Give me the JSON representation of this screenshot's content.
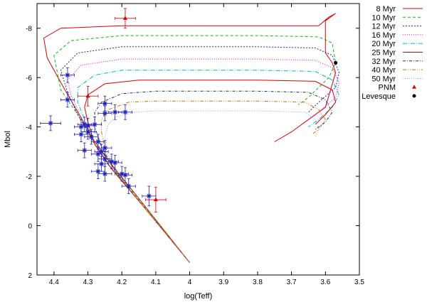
{
  "chart_data": {
    "type": "line",
    "title": "",
    "xlabel": "log(Teff)",
    "ylabel": "Mbol",
    "xlim": [
      4.45,
      3.5
    ],
    "ylim": [
      2,
      -9
    ],
    "xticks": [
      "4.4",
      "4.3",
      "4.2",
      "4.1",
      "4",
      "3.9",
      "3.8",
      "3.7",
      "3.6",
      "3.5"
    ],
    "yticks": [
      "-8",
      "-6",
      "-4",
      "-2",
      "0",
      "2"
    ],
    "legend_position": "right",
    "series": [
      {
        "name": "8 Myr",
        "color": "#e00000",
        "dash": "",
        "points": [
          [
            4.0,
            1.5
          ],
          [
            4.15,
            -1.1
          ],
          [
            4.22,
            -2.3
          ],
          [
            4.28,
            -3.4
          ],
          [
            4.33,
            -4.6
          ],
          [
            4.38,
            -5.8
          ],
          [
            4.42,
            -6.8
          ],
          [
            4.43,
            -7.6
          ],
          [
            4.38,
            -8.0
          ],
          [
            4.2,
            -8.1
          ],
          [
            3.8,
            -8.1
          ],
          [
            3.7,
            -8.1
          ],
          [
            3.62,
            -8.1
          ],
          [
            3.59,
            -8.45
          ],
          [
            3.57,
            -8.6
          ],
          [
            3.6,
            -8.3
          ],
          [
            3.6,
            -7.0
          ],
          [
            3.58,
            -6.6
          ],
          [
            3.57,
            -6.2
          ],
          [
            3.6,
            -4.8
          ],
          [
            3.65,
            -4.3
          ],
          [
            3.7,
            -3.8
          ],
          [
            3.75,
            -3.4
          ]
        ]
      },
      {
        "name": "10 Myr",
        "color": "#00c000",
        "dash": "4,3",
        "points": [
          [
            4.0,
            1.5
          ],
          [
            4.15,
            -1.05
          ],
          [
            4.22,
            -2.25
          ],
          [
            4.28,
            -3.4
          ],
          [
            4.33,
            -4.5
          ],
          [
            4.38,
            -5.5
          ],
          [
            4.4,
            -6.9
          ],
          [
            4.35,
            -7.5
          ],
          [
            4.2,
            -7.7
          ],
          [
            3.8,
            -7.7
          ],
          [
            3.62,
            -7.65
          ],
          [
            3.58,
            -7.4
          ],
          [
            3.57,
            -6.6
          ],
          [
            3.59,
            -6.0
          ],
          [
            3.62,
            -5.6
          ],
          [
            3.65,
            -5.2
          ],
          [
            3.68,
            -4.9
          ]
        ]
      },
      {
        "name": "12 Myr",
        "color": "#2020c0",
        "dash": "2,2",
        "points": [
          [
            4.0,
            1.5
          ],
          [
            4.15,
            -1.0
          ],
          [
            4.23,
            -2.3
          ],
          [
            4.28,
            -3.3
          ],
          [
            4.33,
            -4.5
          ],
          [
            4.36,
            -5.4
          ],
          [
            4.38,
            -6.3
          ],
          [
            4.33,
            -7.0
          ],
          [
            4.2,
            -7.25
          ],
          [
            3.8,
            -7.25
          ],
          [
            3.63,
            -7.2
          ],
          [
            3.58,
            -6.9
          ],
          [
            3.56,
            -6.2
          ],
          [
            3.57,
            -5.6
          ],
          [
            3.62,
            -5.0
          ],
          [
            3.65,
            -4.6
          ]
        ]
      },
      {
        "name": "16 Myr",
        "color": "#e000e0",
        "dash": "1,2",
        "points": [
          [
            4.0,
            1.5
          ],
          [
            4.15,
            -1.0
          ],
          [
            4.23,
            -2.3
          ],
          [
            4.28,
            -3.3
          ],
          [
            4.32,
            -4.4
          ],
          [
            4.35,
            -5.3
          ],
          [
            4.36,
            -5.9
          ],
          [
            4.32,
            -6.5
          ],
          [
            4.2,
            -6.75
          ],
          [
            3.8,
            -6.75
          ],
          [
            3.63,
            -6.7
          ],
          [
            3.58,
            -6.4
          ],
          [
            3.56,
            -5.8
          ],
          [
            3.57,
            -5.2
          ],
          [
            3.62,
            -4.6
          ],
          [
            3.65,
            -4.3
          ]
        ]
      },
      {
        "name": "20 Myr",
        "color": "#00c0c0",
        "dash": "6,2,1,2",
        "points": [
          [
            4.0,
            1.5
          ],
          [
            4.15,
            -1.0
          ],
          [
            4.23,
            -2.3
          ],
          [
            4.28,
            -3.3
          ],
          [
            4.31,
            -4.3
          ],
          [
            4.33,
            -5.0
          ],
          [
            4.33,
            -5.6
          ],
          [
            4.28,
            -6.1
          ],
          [
            4.2,
            -6.3
          ],
          [
            3.8,
            -6.3
          ],
          [
            3.63,
            -6.25
          ],
          [
            3.58,
            -5.9
          ],
          [
            3.56,
            -5.3
          ],
          [
            3.58,
            -4.8
          ],
          [
            3.62,
            -4.3
          ],
          [
            3.65,
            -4.0
          ]
        ]
      },
      {
        "name": "25 Myr",
        "color": "#e00000",
        "dash": "",
        "points": [
          [
            4.0,
            1.5
          ],
          [
            4.15,
            -1.0
          ],
          [
            4.23,
            -2.3
          ],
          [
            4.28,
            -3.3
          ],
          [
            4.3,
            -4.2
          ],
          [
            4.31,
            -4.8
          ],
          [
            4.3,
            -5.3
          ],
          [
            4.25,
            -5.75
          ],
          [
            4.15,
            -5.9
          ],
          [
            3.8,
            -5.9
          ],
          [
            3.63,
            -5.85
          ],
          [
            3.58,
            -5.5
          ],
          [
            3.57,
            -5.0
          ],
          [
            3.6,
            -4.5
          ],
          [
            3.63,
            -4.1
          ]
        ]
      },
      {
        "name": "32 Myr",
        "color": "#203060",
        "dash": "4,2,1,2",
        "points": [
          [
            4.0,
            1.5
          ],
          [
            4.15,
            -1.0
          ],
          [
            4.22,
            -2.2
          ],
          [
            4.26,
            -3.2
          ],
          [
            4.28,
            -4.0
          ],
          [
            4.28,
            -4.6
          ],
          [
            4.26,
            -5.0
          ],
          [
            4.2,
            -5.35
          ],
          [
            4.1,
            -5.45
          ],
          [
            3.8,
            -5.45
          ],
          [
            3.65,
            -5.4
          ],
          [
            3.6,
            -5.1
          ],
          [
            3.58,
            -4.6
          ],
          [
            3.6,
            -4.2
          ],
          [
            3.63,
            -3.9
          ]
        ]
      },
      {
        "name": "40 Myr",
        "color": "#e07000",
        "dash": "5,2,1,2,1,2",
        "points": [
          [
            4.0,
            1.5
          ],
          [
            4.15,
            -1.0
          ],
          [
            4.22,
            -2.2
          ],
          [
            4.25,
            -3.1
          ],
          [
            4.26,
            -3.8
          ],
          [
            4.26,
            -4.3
          ],
          [
            4.24,
            -4.7
          ],
          [
            4.18,
            -5.0
          ],
          [
            4.1,
            -5.05
          ],
          [
            3.8,
            -5.05
          ],
          [
            3.66,
            -5.0
          ],
          [
            3.62,
            -4.7
          ],
          [
            3.6,
            -4.3
          ],
          [
            3.62,
            -3.9
          ],
          [
            3.64,
            -3.7
          ]
        ]
      },
      {
        "name": "50 Myr",
        "color": "#a0a0a0",
        "dash": "1,2",
        "points": [
          [
            4.0,
            1.5
          ],
          [
            4.15,
            -1.0
          ],
          [
            4.21,
            -2.1
          ],
          [
            4.24,
            -3.0
          ],
          [
            4.25,
            -3.6
          ],
          [
            4.24,
            -4.1
          ],
          [
            4.22,
            -4.4
          ],
          [
            4.16,
            -4.6
          ],
          [
            4.1,
            -4.65
          ],
          [
            3.8,
            -4.65
          ],
          [
            3.66,
            -4.6
          ],
          [
            3.63,
            -4.3
          ],
          [
            3.62,
            -3.9
          ],
          [
            3.63,
            -3.6
          ]
        ]
      }
    ],
    "observations": [
      {
        "name": "PNM",
        "marker": "triangle",
        "color": "#e00000",
        "points": [
          [
            4.19,
            -8.4,
            0.03,
            0.4
          ],
          [
            4.3,
            -5.25,
            0.03,
            0.4
          ],
          [
            4.1,
            -1.05,
            0.03,
            0.5
          ]
        ]
      },
      {
        "name": "Levesque",
        "marker": "circle",
        "color": "#000000",
        "points": [
          [
            3.57,
            -6.6,
            0,
            0
          ]
        ]
      },
      {
        "name": "Stars",
        "marker": "star",
        "color": "#2020c0",
        "in_legend": false,
        "points": [
          [
            4.41,
            -4.15,
            0.03,
            0.3
          ],
          [
            4.36,
            -6.1,
            0.02,
            0.3
          ],
          [
            4.36,
            -5.1,
            0.02,
            0.3
          ],
          [
            4.31,
            -4.1,
            0.02,
            0.3
          ],
          [
            4.32,
            -4.0,
            0.02,
            0.3
          ],
          [
            4.3,
            -4.05,
            0.02,
            0.3
          ],
          [
            4.28,
            -4.1,
            0.02,
            0.3
          ],
          [
            4.3,
            -3.8,
            0.02,
            0.3
          ],
          [
            4.32,
            -3.7,
            0.02,
            0.3
          ],
          [
            4.29,
            -3.6,
            0.02,
            0.3
          ],
          [
            4.27,
            -3.4,
            0.02,
            0.3
          ],
          [
            4.31,
            -3.05,
            0.02,
            0.3
          ],
          [
            4.25,
            -3.15,
            0.02,
            0.3
          ],
          [
            4.26,
            -3.0,
            0.02,
            0.3
          ],
          [
            4.27,
            -2.9,
            0.02,
            0.3
          ],
          [
            4.25,
            -2.7,
            0.02,
            0.3
          ],
          [
            4.26,
            -2.5,
            0.02,
            0.3
          ],
          [
            4.27,
            -2.2,
            0.02,
            0.3
          ],
          [
            4.25,
            -2.1,
            0.02,
            0.3
          ],
          [
            4.23,
            -2.6,
            0.02,
            0.3
          ],
          [
            4.22,
            -2.55,
            0.02,
            0.3
          ],
          [
            4.2,
            -2.1,
            0.02,
            0.3
          ],
          [
            4.18,
            -1.6,
            0.02,
            0.3
          ],
          [
            4.19,
            -2.05,
            0.02,
            0.3
          ],
          [
            4.12,
            -1.2,
            0.02,
            0.4
          ],
          [
            4.25,
            -4.55,
            0.02,
            0.3
          ],
          [
            4.22,
            -4.6,
            0.02,
            0.3
          ],
          [
            4.19,
            -4.6,
            0.02,
            0.3
          ],
          [
            4.25,
            -4.95,
            0.02,
            0.3
          ]
        ]
      }
    ]
  }
}
